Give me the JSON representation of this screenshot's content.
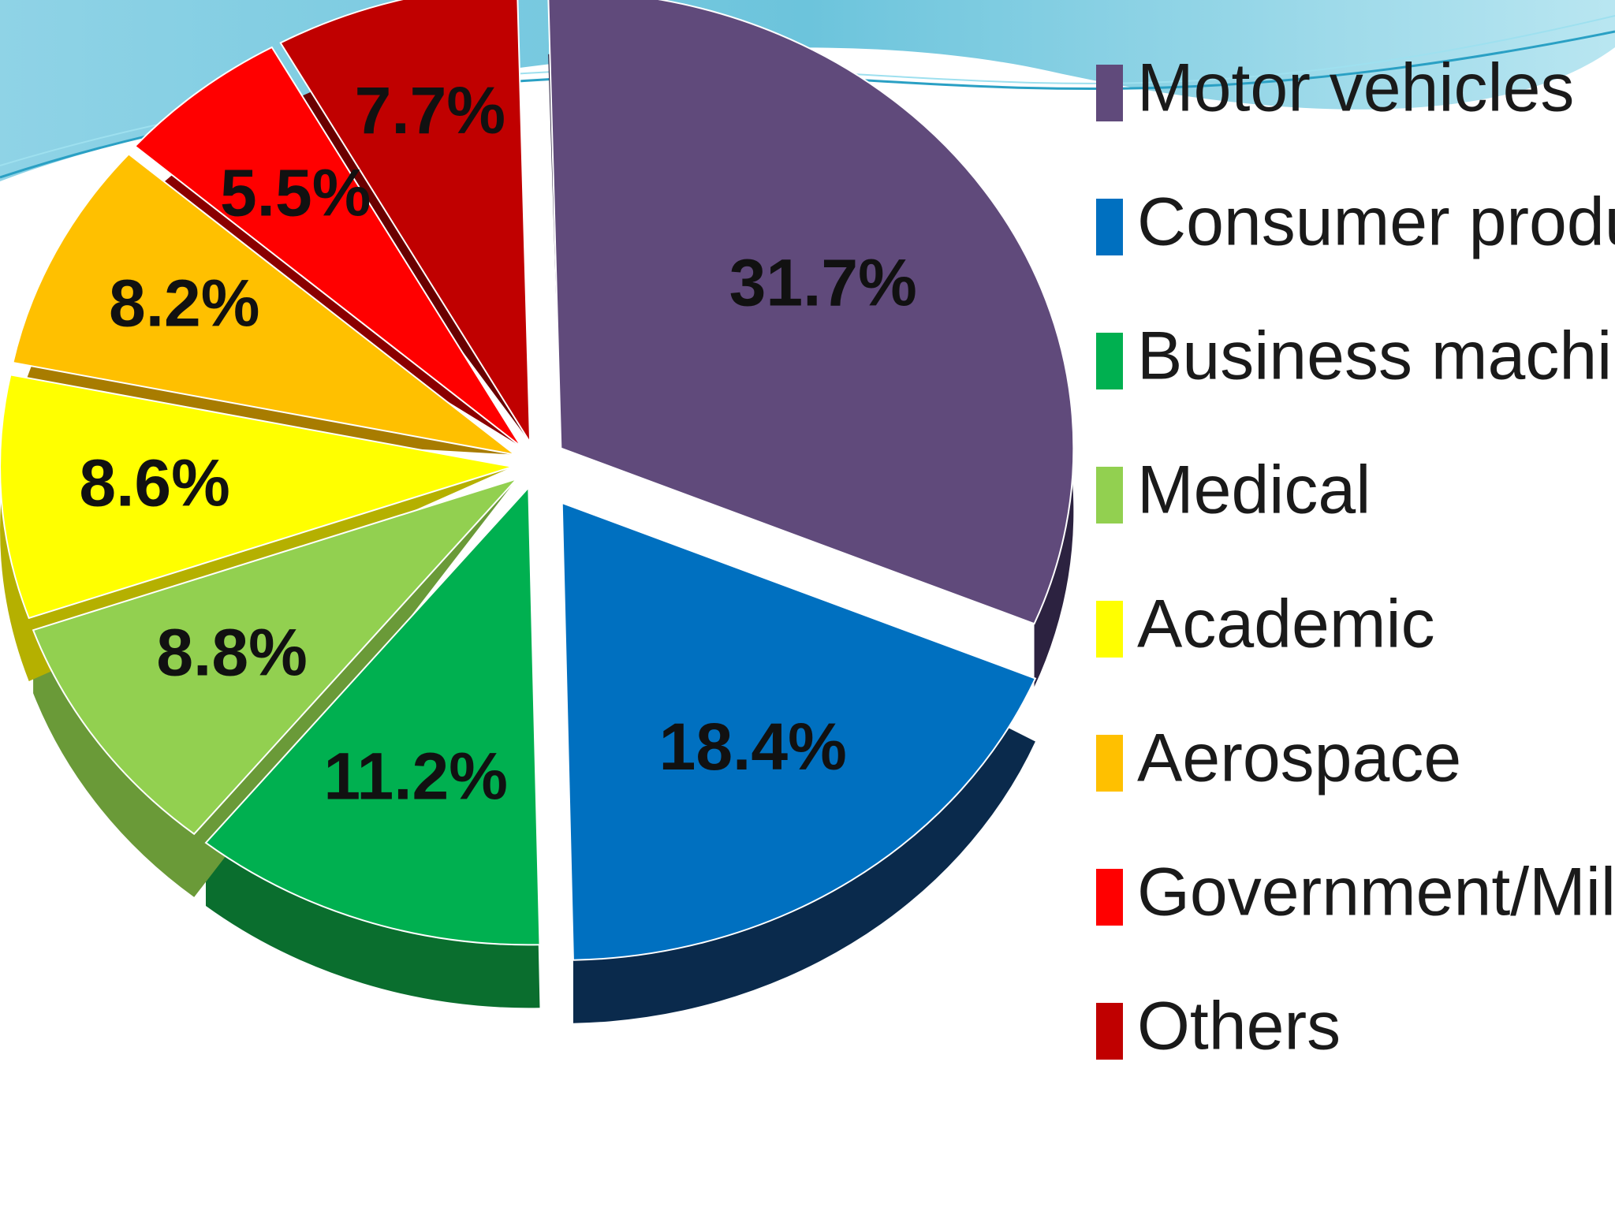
{
  "chart_data": {
    "type": "pie",
    "title": "",
    "legend_position": "right",
    "slices": [
      {
        "label": "Motor vehicles",
        "value": 31.7,
        "display": "31.7%",
        "color": "#604a7b",
        "side": "#2c2240"
      },
      {
        "label": "Consumer products",
        "value": 18.4,
        "display": "18.4%",
        "color": "#0070c0",
        "side": "#0a2a4c"
      },
      {
        "label": "Business machines",
        "value": 11.2,
        "display": "11.2%",
        "color": "#00b050",
        "side": "#0a6e2e"
      },
      {
        "label": "Medical",
        "value": 8.8,
        "display": "8.8%",
        "color": "#92d050",
        "side": "#6a9a38"
      },
      {
        "label": "Academic",
        "value": 8.6,
        "display": "8.6%",
        "color": "#ffff00",
        "side": "#b5b000"
      },
      {
        "label": "Aerospace",
        "value": 8.2,
        "display": "8.2%",
        "color": "#ffc000",
        "side": "#a87c00"
      },
      {
        "label": "Government/Military",
        "value": 5.5,
        "display": "5.5%",
        "color": "#ff0000",
        "side": "#8a0000"
      },
      {
        "label": "Others",
        "value": 7.7,
        "display": "7.7%",
        "color": "#c00000",
        "side": "#6a0000"
      }
    ]
  }
}
